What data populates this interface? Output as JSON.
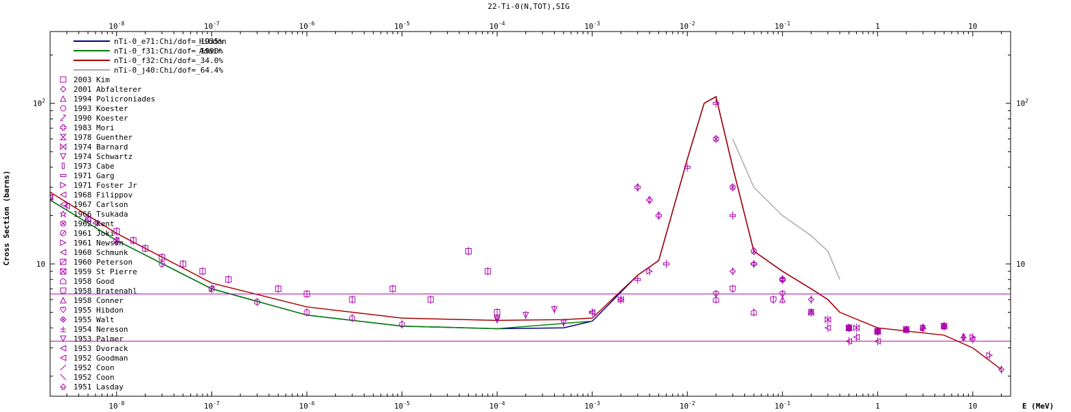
{
  "chart_data": {
    "type": "scatter",
    "title": "22-Ti-0(N,TOT),SIG",
    "xlabel": "E (MeV)",
    "ylabel": "Cross Section (barns)",
    "x_scale": "log",
    "y_scale": "log",
    "xlim": [
      2e-09,
      25
    ],
    "ylim": [
      1.5,
      280
    ],
    "grid": false,
    "legend_position": "top-left",
    "x_ticks": [
      {
        "value": 1e-08,
        "base": "10",
        "exp": "-8"
      },
      {
        "value": 1e-07,
        "base": "10",
        "exp": "-7"
      },
      {
        "value": 1e-06,
        "base": "10",
        "exp": "-6"
      },
      {
        "value": 1e-05,
        "base": "10",
        "exp": "-5"
      },
      {
        "value": 0.0001,
        "base": "10",
        "exp": "-4"
      },
      {
        "value": 0.001,
        "base": "10",
        "exp": "-3"
      },
      {
        "value": 0.01,
        "base": "10",
        "exp": "-2"
      },
      {
        "value": 0.1,
        "base": "10",
        "exp": "-1"
      },
      {
        "value": 1,
        "base": "1",
        "exp": ""
      },
      {
        "value": 10,
        "base": "10",
        "exp": ""
      }
    ],
    "y_ticks": [
      {
        "value": 10,
        "base": "10",
        "exp": ""
      },
      {
        "value": 100,
        "base": "10",
        "exp": "2"
      }
    ],
    "series": [
      {
        "name": "nTi-0_e71:Chi/dof=_1935%",
        "overlap_text": "Hibdon",
        "color": "#00008b",
        "kind": "line",
        "x": [
          2e-09,
          1e-08,
          1e-07,
          1e-06,
          1e-05,
          0.0001,
          0.0005,
          0.001,
          0.003,
          0.005,
          0.01,
          0.015,
          0.02,
          0.03,
          0.05,
          0.1,
          0.2,
          0.3,
          0.4
        ],
        "y": [
          25,
          14,
          7.0,
          4.8,
          4.1,
          3.95,
          4.0,
          4.4,
          8.5,
          10.5,
          45,
          100,
          110,
          40,
          12,
          9,
          7,
          6,
          5
        ]
      },
      {
        "name": "nTi-0_f31:Chi/dof=_1990%",
        "overlap_text": "Adair",
        "color": "#008000",
        "kind": "line",
        "x": [
          2e-09,
          1e-08,
          1e-07,
          1e-06,
          1e-05,
          0.0001,
          0.001
        ],
        "y": [
          25,
          14,
          7.0,
          4.8,
          4.1,
          3.95,
          4.4
        ]
      },
      {
        "name": "nTi-0_f32:Chi/dof=_34.0%",
        "color": "#aa0000",
        "kind": "line",
        "x": [
          2e-09,
          1e-08,
          1e-07,
          1e-06,
          1e-05,
          0.0001,
          0.0005,
          0.001,
          0.003,
          0.005,
          0.01,
          0.015,
          0.02,
          0.03,
          0.05,
          0.1,
          0.2,
          0.3,
          0.4,
          1,
          5,
          10,
          20
        ],
        "y": [
          28,
          15.5,
          7.6,
          5.4,
          4.6,
          4.45,
          4.5,
          4.6,
          8.5,
          10.5,
          45,
          100,
          110,
          40,
          12,
          9,
          7,
          6,
          5,
          4,
          3.6,
          3.0,
          2.2
        ]
      },
      {
        "name": "nTi-0_j40:Chi/dof=_64.4%",
        "color": "#a9a9a9",
        "kind": "line",
        "x": [
          0.03,
          0.05,
          0.1,
          0.2,
          0.3,
          0.4
        ],
        "y": [
          60,
          30,
          20,
          15,
          12,
          8
        ]
      }
    ],
    "datasets": [
      {
        "name": "2003 Kim",
        "symbol": "square",
        "x": [
          1e-08,
          1.5e-08,
          2e-08,
          3e-08,
          5e-08,
          8e-08,
          1.5e-07,
          5e-07,
          1e-06,
          3e-06,
          8e-06,
          2e-05,
          5e-05,
          8e-05,
          0.0001
        ],
        "y": [
          16,
          14,
          12.5,
          11,
          10,
          9,
          8,
          7,
          6.5,
          6,
          7,
          6,
          12,
          9,
          5
        ]
      },
      {
        "name": "2001 Abfalterer",
        "symbol": "diamond",
        "x": [
          0.03,
          0.05,
          0.1,
          0.2,
          0.5,
          1,
          2,
          5,
          10,
          20
        ],
        "y": [
          9,
          10,
          8,
          6,
          4,
          3.8,
          3.9,
          4.1,
          3.4,
          2.2
        ]
      },
      {
        "name": "1994 Policroniades",
        "symbol": "triangle-up",
        "x": [
          0.5,
          1,
          2,
          5
        ],
        "y": [
          4,
          3.8,
          3.9,
          4.1
        ]
      },
      {
        "name": "1993 Koester",
        "symbol": "circle",
        "x": [
          2e-09,
          5e-09,
          1e-08,
          3e-08,
          1e-07,
          3e-07,
          1e-06,
          3e-06,
          1e-05
        ],
        "y": [
          26,
          19,
          14,
          10,
          7,
          5.8,
          5,
          4.6,
          4.2
        ]
      },
      {
        "name": "1990 Koester",
        "symbol": "slash-box",
        "x": [
          2e-09,
          1e-08,
          1e-07
        ],
        "y": [
          25,
          14,
          7
        ]
      },
      {
        "name": "1983 Mori",
        "symbol": "plus-thick",
        "x": [
          0.003,
          0.004,
          0.005
        ],
        "y": [
          30,
          25,
          20
        ]
      },
      {
        "name": "1978 Guenther",
        "symbol": "hourglass",
        "x": [
          0.2,
          0.5,
          1,
          2
        ],
        "y": [
          5,
          4,
          3.8,
          3.9
        ]
      },
      {
        "name": "1974 Barnard",
        "symbol": "bowtie",
        "x": [
          0.3,
          0.6
        ],
        "y": [
          4.5,
          4
        ]
      },
      {
        "name": "1974 Schwartz",
        "symbol": "triangle-down",
        "x": [
          0.0001,
          0.0002,
          0.0004
        ],
        "y": [
          4.6,
          4.8,
          5.2
        ]
      },
      {
        "name": "1973 Cabe",
        "symbol": "bar-v",
        "x": [
          0.5,
          1,
          3,
          8
        ],
        "y": [
          4,
          3.8,
          4,
          3.5
        ]
      },
      {
        "name": "1971 Garg",
        "symbol": "bar-h",
        "x": [
          0.001,
          0.003,
          0.006,
          0.01,
          0.02,
          0.03,
          0.05,
          0.1,
          0.2
        ],
        "y": [
          5,
          8,
          10,
          40,
          100,
          20,
          10,
          8,
          5
        ]
      },
      {
        "name": "1971 Foster Jr",
        "symbol": "tri-right",
        "x": [
          3,
          5,
          10,
          15
        ],
        "y": [
          4,
          4.1,
          3.5,
          2.7
        ]
      },
      {
        "name": "1968 Filippov",
        "symbol": "tri-left",
        "x": [
          2e-09,
          5e-09
        ],
        "y": [
          26,
          19
        ]
      },
      {
        "name": "1967 Carlson",
        "symbol": "tri-left",
        "x": [
          3e-09,
          6e-09
        ],
        "y": [
          23,
          18
        ]
      },
      {
        "name": "1966 Tsukada",
        "symbol": "star",
        "x": [
          0.5,
          1,
          2
        ],
        "y": [
          4,
          3.8,
          3.9
        ]
      },
      {
        "name": "1962 Kent",
        "symbol": "circle-x",
        "x": [
          0.02,
          0.03
        ],
        "y": [
          60,
          30
        ]
      },
      {
        "name": "1961 Joki",
        "symbol": "circle-slash",
        "x": [
          0.05,
          0.1
        ],
        "y": [
          12,
          8
        ]
      },
      {
        "name": "1961 Newson",
        "symbol": "tri-right",
        "x": [
          0.002,
          0.004
        ],
        "y": [
          6,
          9
        ]
      },
      {
        "name": "1960 Schmunk",
        "symbol": "tri-left",
        "x": [
          0.001,
          0.002
        ],
        "y": [
          5,
          6
        ]
      },
      {
        "name": "1960 Peterson",
        "symbol": "square-slash",
        "x": [
          1,
          2,
          5
        ],
        "y": [
          3.8,
          3.9,
          4.1
        ]
      },
      {
        "name": "1959 St Pierre",
        "symbol": "square-x",
        "x": [
          0.5,
          1
        ],
        "y": [
          4,
          3.8
        ]
      },
      {
        "name": "1958 Good",
        "symbol": "house",
        "x": [
          0.02,
          0.05
        ],
        "y": [
          6,
          5
        ]
      },
      {
        "name": "1958 Bratenahl",
        "symbol": "shield",
        "x": [
          0.03,
          0.08
        ],
        "y": [
          7,
          6
        ]
      },
      {
        "name": "1958 Conner",
        "symbol": "triangle-up",
        "x": [
          0.1,
          0.2
        ],
        "y": [
          6,
          5
        ]
      },
      {
        "name": "1955 Hibdon",
        "symbol": "heart",
        "x": [
          0.02,
          0.1
        ],
        "y": [
          6.5,
          6.5
        ],
        "horizontal_line": 6.5
      },
      {
        "name": "1955 Walt",
        "symbol": "diamond-x",
        "x": [
          0.5,
          1
        ],
        "y": [
          4,
          3.8
        ]
      },
      {
        "name": "1954 Nereson",
        "symbol": "plus-small",
        "x": [
          2,
          5
        ],
        "y": [
          3.9,
          4.1
        ]
      },
      {
        "name": "1953 Palmer",
        "symbol": "triangle-down",
        "x": [
          0.0001,
          0.0005
        ],
        "y": [
          4.5,
          4.3
        ]
      },
      {
        "name": "1953 Dvorack",
        "symbol": "tri-left",
        "x": [
          0.5,
          1
        ],
        "y": [
          3.3,
          3.3
        ],
        "horizontal_line": 3.3
      },
      {
        "name": "1952 Goodman",
        "symbol": "tri-left",
        "x": [
          0.3,
          0.6
        ],
        "y": [
          4,
          3.5
        ]
      },
      {
        "name": "1952 Coon",
        "symbol": "slash",
        "x": [
          1,
          3
        ],
        "y": [
          3.8,
          4
        ]
      },
      {
        "name": "1952 Coon",
        "symbol": "backslash",
        "x": [
          2,
          5
        ],
        "y": [
          3.9,
          4.1
        ]
      },
      {
        "name": "1951 Lasday",
        "symbol": "spade",
        "x": [
          3,
          8
        ],
        "y": [
          4,
          3.5
        ]
      }
    ]
  }
}
